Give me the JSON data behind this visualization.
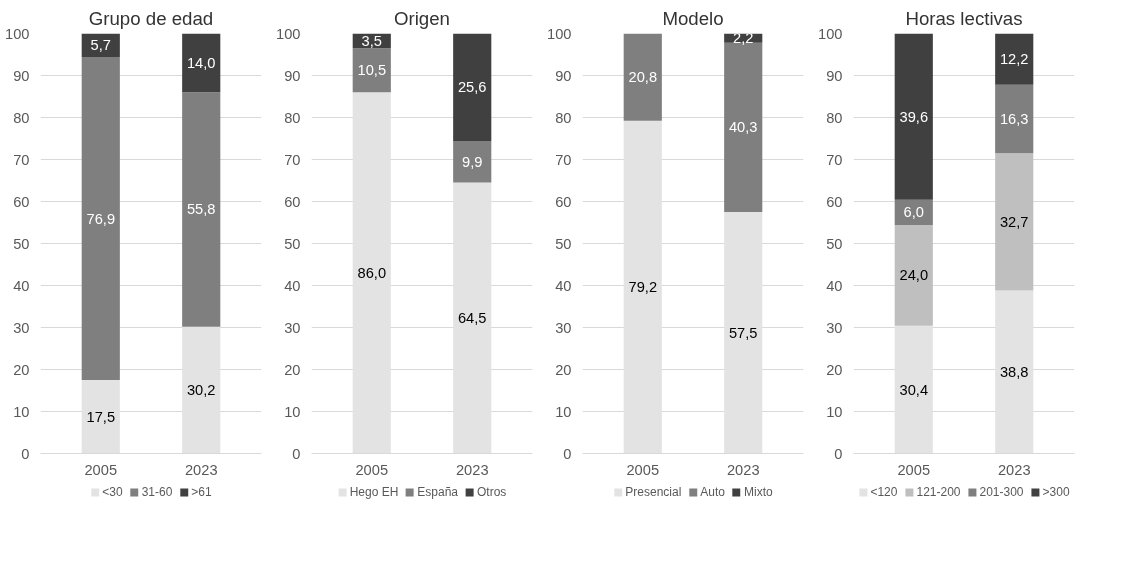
{
  "chart_data": [
    {
      "type": "bar",
      "title": "Grupo de edad",
      "categories": [
        "2005",
        "2023"
      ],
      "stacked": true,
      "ylim": [
        0,
        100
      ],
      "yticks": [
        0,
        10,
        20,
        30,
        40,
        50,
        60,
        70,
        80,
        90,
        100
      ],
      "grid": "y",
      "legend": "bottom",
      "series": [
        {
          "name": "<30",
          "color": "#e3e3e3",
          "values": [
            17.5,
            30.2
          ],
          "value_labels": [
            "17,5",
            "30,2"
          ]
        },
        {
          "name": "31-60",
          "color": "#7f7f7f",
          "values": [
            76.9,
            55.8
          ],
          "value_labels": [
            "76,9",
            "55,8"
          ]
        },
        {
          "name": ">61",
          "color": "#404040",
          "values": [
            5.7,
            14.0
          ],
          "value_labels": [
            "5,7",
            "14,0"
          ]
        }
      ]
    },
    {
      "type": "bar",
      "title": "Origen",
      "categories": [
        "2005",
        "2023"
      ],
      "stacked": true,
      "ylim": [
        0,
        100
      ],
      "yticks": [
        0,
        10,
        20,
        30,
        40,
        50,
        60,
        70,
        80,
        90,
        100
      ],
      "grid": "y",
      "legend": "bottom",
      "series": [
        {
          "name": "Hego EH",
          "color": "#e3e3e3",
          "values": [
            86.0,
            64.5
          ],
          "value_labels": [
            "86,0",
            "64,5"
          ]
        },
        {
          "name": "España",
          "color": "#7f7f7f",
          "values": [
            10.5,
            9.9
          ],
          "value_labels": [
            "10,5",
            "9,9"
          ]
        },
        {
          "name": "Otros",
          "color": "#404040",
          "values": [
            3.5,
            25.6
          ],
          "value_labels": [
            "3,5",
            "25,6"
          ]
        }
      ]
    },
    {
      "type": "bar",
      "title": "Modelo",
      "categories": [
        "2005",
        "2023"
      ],
      "stacked": true,
      "ylim": [
        0,
        100
      ],
      "yticks": [
        0,
        10,
        20,
        30,
        40,
        50,
        60,
        70,
        80,
        90,
        100
      ],
      "grid": "y",
      "legend": "bottom",
      "series": [
        {
          "name": "Presencial",
          "color": "#e3e3e3",
          "values": [
            79.2,
            57.5
          ],
          "value_labels": [
            "79,2",
            "57,5"
          ]
        },
        {
          "name": "Auto",
          "color": "#7f7f7f",
          "values": [
            20.8,
            40.3
          ],
          "value_labels": [
            "20,8",
            "40,3"
          ]
        },
        {
          "name": "Mixto",
          "color": "#404040",
          "values": [
            0,
            2.2
          ],
          "value_labels": [
            null,
            "2,2"
          ]
        }
      ]
    },
    {
      "type": "bar",
      "title": "Horas lectivas",
      "categories": [
        "2005",
        "2023"
      ],
      "stacked": true,
      "ylim": [
        0,
        100
      ],
      "yticks": [
        0,
        10,
        20,
        30,
        40,
        50,
        60,
        70,
        80,
        90,
        100
      ],
      "grid": "y",
      "legend": "bottom",
      "series": [
        {
          "name": "<120",
          "color": "#e3e3e3",
          "values": [
            30.4,
            38.8
          ],
          "value_labels": [
            "30,4",
            "38,8"
          ]
        },
        {
          "name": "121-200",
          "color": "#bfbfbf",
          "values": [
            24.0,
            32.7
          ],
          "value_labels": [
            "24,0",
            "32,7"
          ]
        },
        {
          "name": "201-300",
          "color": "#7f7f7f",
          "values": [
            6.0,
            16.3
          ],
          "value_labels": [
            "6,0",
            "16,3"
          ]
        },
        {
          "name": ">300",
          "color": "#404040",
          "values": [
            39.6,
            12.2
          ],
          "value_labels": [
            "39,6",
            "12,2"
          ]
        }
      ]
    }
  ]
}
